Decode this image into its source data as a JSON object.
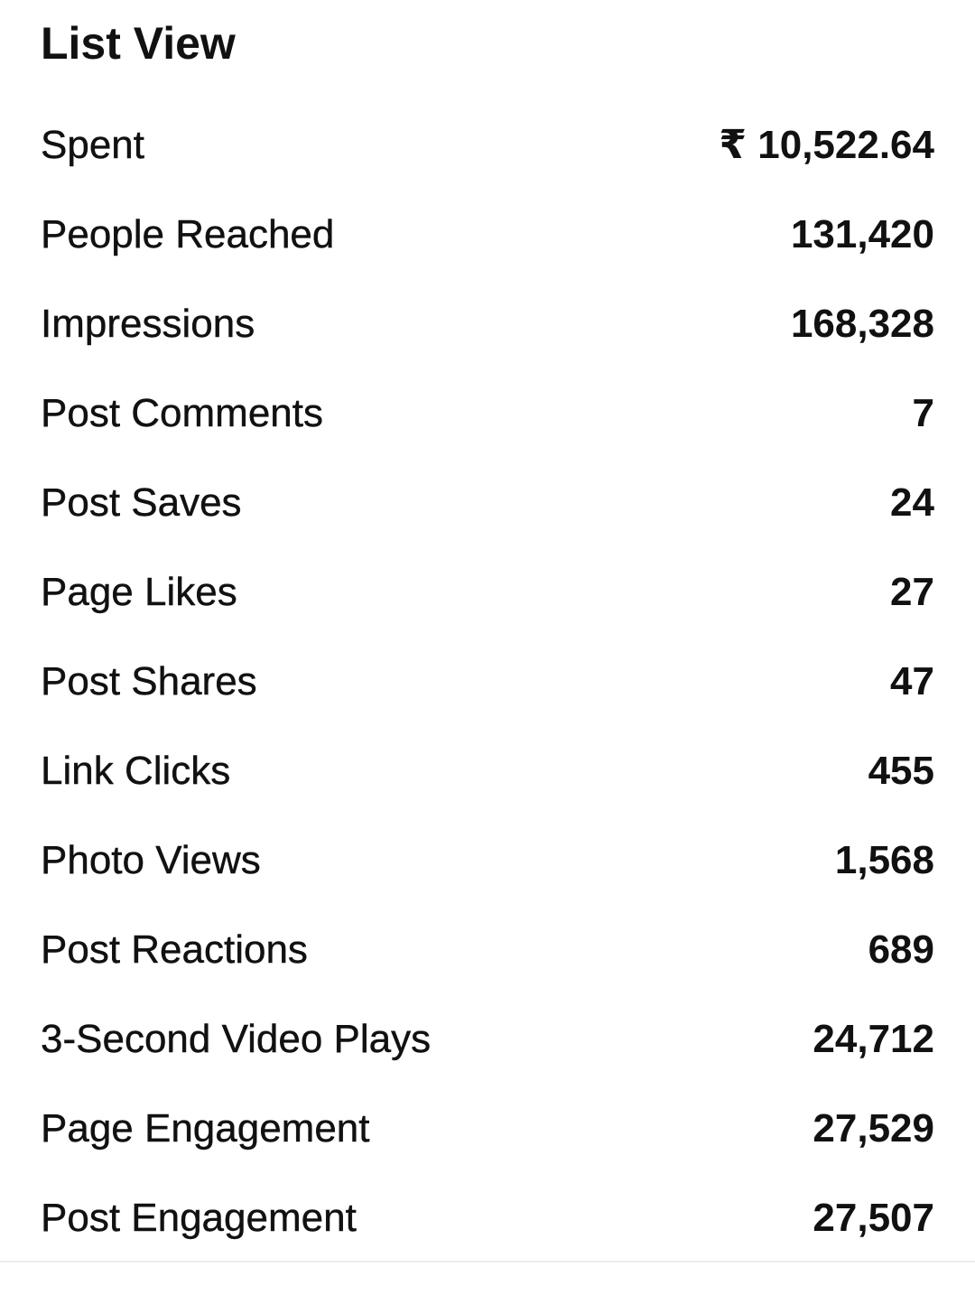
{
  "header": {
    "title": "List View"
  },
  "metrics": [
    {
      "label": "Spent",
      "value": "₹ 10,522.64"
    },
    {
      "label": "People Reached",
      "value": "131,420"
    },
    {
      "label": "Impressions",
      "value": "168,328"
    },
    {
      "label": "Post Comments",
      "value": "7"
    },
    {
      "label": "Post Saves",
      "value": "24"
    },
    {
      "label": "Page Likes",
      "value": "27"
    },
    {
      "label": "Post Shares",
      "value": "47"
    },
    {
      "label": "Link Clicks",
      "value": "455"
    },
    {
      "label": "Photo Views",
      "value": "1,568"
    },
    {
      "label": "Post Reactions",
      "value": "689"
    },
    {
      "label": "3-Second Video Plays",
      "value": "24,712"
    },
    {
      "label": "Page Engagement",
      "value": "27,529"
    },
    {
      "label": "Post Engagement",
      "value": "27,507"
    }
  ]
}
